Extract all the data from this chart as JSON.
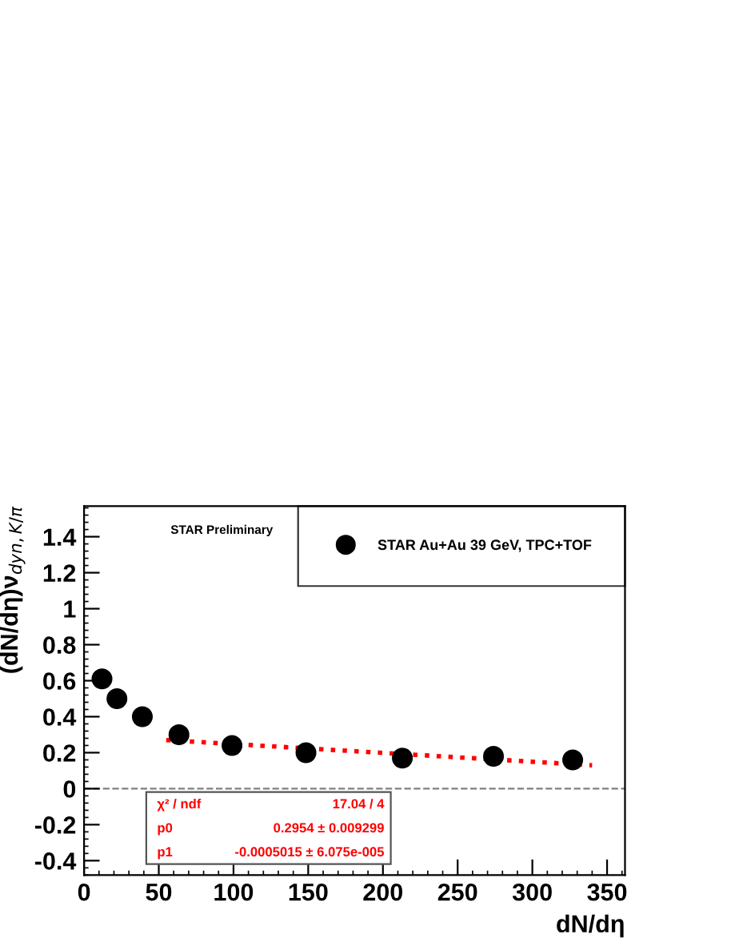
{
  "chart_data": {
    "type": "scatter",
    "xlabel": "dN/dη",
    "ylabel": "(dN/dη)ν$_{dyn,K/π}$",
    "xlim": [
      0,
      362
    ],
    "xticks": [
      0,
      50,
      100,
      150,
      200,
      250,
      300,
      350
    ],
    "ylim": [
      -0.48,
      1.57
    ],
    "yticks": [
      -0.4,
      -0.2,
      0,
      0.2,
      0.4,
      0.6,
      0.8,
      1,
      1.2,
      1.4
    ],
    "grid": false,
    "legend": "top right",
    "marker": "circle",
    "series": [
      {
        "name": "STAR Au+Au 39 GeV, TPC+TOF",
        "color": "#000000",
        "x": [
          12,
          22,
          39,
          63.5,
          99,
          148.5,
          213,
          274,
          327
        ],
        "values": [
          0.61,
          0.5,
          0.4,
          0.3,
          0.24,
          0.2,
          0.17,
          0.18,
          0.16
        ]
      },
      {
        "type": "line",
        "color": "#ff0000",
        "marker": "none",
        "line_style": "dotted",
        "x": [
          55,
          340
        ],
        "values": [
          0.27,
          0.13
        ]
      }
    ],
    "ref_lines": [
      {
        "axis": "y",
        "value": 0,
        "color": "#808080",
        "line_style": "dashed"
      }
    ],
    "annotations": [
      "STAR Preliminary",
      "χ² / ndf",
      "17.04 / 4",
      "p0",
      "0.2954 ± 0.009299",
      "p1",
      "-0.0005015 ± 6.075e-005"
    ]
  }
}
